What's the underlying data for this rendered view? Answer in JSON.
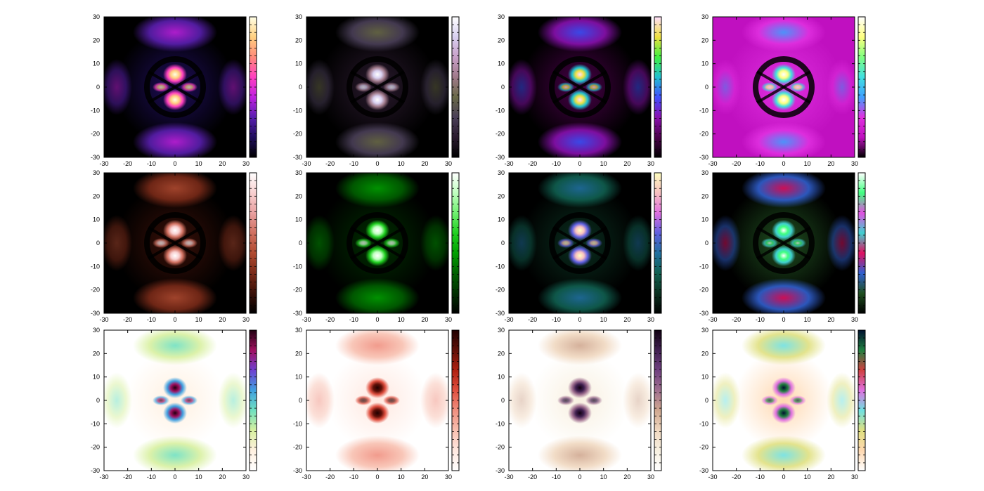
{
  "figure": {
    "rows": 3,
    "cols": 4
  },
  "chart_data": [
    {
      "type": "heatmap",
      "panel": "r1c1",
      "palette": [
        "#000000",
        "#1f0d5c",
        "#5a1fb0",
        "#c020e0",
        "#ff40c0",
        "#ff8a7a",
        "#ffd080",
        "#ffffe6"
      ],
      "xlim": [
        -30,
        30
      ],
      "ylim": [
        -30,
        30
      ],
      "xticks": [
        -30,
        -20,
        -10,
        0,
        10,
        20,
        30
      ],
      "yticks": [
        -30,
        -20,
        -10,
        0,
        10,
        20,
        30
      ],
      "colorbar_ticks": 9,
      "bg": "dark"
    },
    {
      "type": "heatmap",
      "panel": "r1c2",
      "palette": [
        "#000000",
        "#2a1a2e",
        "#4a3f58",
        "#6a6a48",
        "#a07a8a",
        "#c8a0c8",
        "#d8d0f0",
        "#ffffff"
      ],
      "xlim": [
        -30,
        30
      ],
      "ylim": [
        -30,
        30
      ],
      "xticks": [
        -30,
        -20,
        -10,
        0,
        10,
        20,
        30
      ],
      "yticks": [
        -30,
        -20,
        -10,
        0,
        10,
        20,
        30
      ],
      "colorbar_ticks": 9,
      "bg": "dark"
    },
    {
      "type": "heatmap",
      "panel": "r1c3",
      "palette": [
        "#000000",
        "#4a004a",
        "#8a10b0",
        "#4050ff",
        "#20c0d0",
        "#40f040",
        "#f0e040",
        "#ffe0ff"
      ],
      "xlim": [
        -30,
        30
      ],
      "ylim": [
        -30,
        30
      ],
      "xticks": [
        -30,
        -20,
        -10,
        0,
        10,
        20,
        30
      ],
      "yticks": [
        -30,
        -20,
        -10,
        0,
        10,
        20,
        30
      ],
      "colorbar_ticks": 9,
      "bg": "dark"
    },
    {
      "type": "heatmap",
      "panel": "r1c4",
      "palette": [
        "#000000",
        "#c010c0",
        "#e030e0",
        "#40a0ff",
        "#40e0e0",
        "#80ff80",
        "#ffff80",
        "#ffffff"
      ],
      "xlim": [
        -30,
        30
      ],
      "ylim": [
        -30,
        30
      ],
      "xticks": [
        -30,
        -20,
        -10,
        0,
        10,
        20,
        30
      ],
      "yticks": [
        -30,
        -20,
        -10,
        0,
        10,
        20,
        30
      ],
      "colorbar_ticks": 9,
      "bg": "magenta"
    },
    {
      "type": "heatmap",
      "panel": "r2c1",
      "palette": [
        "#000000",
        "#3a1008",
        "#7a2a18",
        "#b04a30",
        "#d07060",
        "#e8a0a0",
        "#f8d0d0",
        "#ffffff"
      ],
      "xlim": [
        -30,
        30
      ],
      "ylim": [
        -30,
        30
      ],
      "xticks": [
        -30,
        -20,
        -10,
        0,
        10,
        20,
        30
      ],
      "yticks": [
        -30,
        -20,
        -10,
        0,
        10,
        20,
        30
      ],
      "colorbar_ticks": 9,
      "bg": "dark"
    },
    {
      "type": "heatmap",
      "panel": "r2c2",
      "palette": [
        "#000000",
        "#003000",
        "#006000",
        "#00a000",
        "#20d020",
        "#70f070",
        "#c0ffc0",
        "#ffffff"
      ],
      "xlim": [
        -30,
        30
      ],
      "ylim": [
        -30,
        30
      ],
      "xticks": [
        -30,
        -20,
        -10,
        0,
        10,
        20,
        30
      ],
      "yticks": [
        -30,
        -20,
        -10,
        0,
        10,
        20,
        30
      ],
      "colorbar_ticks": 9,
      "bg": "dark"
    },
    {
      "type": "heatmap",
      "panel": "r2c3",
      "palette": [
        "#000000",
        "#0a3020",
        "#106050",
        "#2070a0",
        "#6060e0",
        "#e070e0",
        "#f8c0c0",
        "#ffffc0"
      ],
      "xlim": [
        -30,
        30
      ],
      "ylim": [
        -30,
        30
      ],
      "xticks": [
        -30,
        -20,
        -10,
        0,
        10,
        20,
        30
      ],
      "yticks": [
        -30,
        -20,
        -10,
        0,
        10,
        20,
        30
      ],
      "colorbar_ticks": 9,
      "bg": "dark"
    },
    {
      "type": "heatmap",
      "panel": "r2c4",
      "palette": [
        "#000000",
        "#205020",
        "#3060d0",
        "#e01060",
        "#40d0d0",
        "#e050e0",
        "#40ff80",
        "#ffffff"
      ],
      "xlim": [
        -30,
        30
      ],
      "ylim": [
        -30,
        30
      ],
      "xticks": [
        -30,
        -20,
        -10,
        0,
        10,
        20,
        30
      ],
      "yticks": [
        -30,
        -20,
        -10,
        0,
        10,
        20,
        30
      ],
      "colorbar_ticks": 9,
      "bg": "dark"
    },
    {
      "type": "heatmap",
      "panel": "r3c1",
      "palette": [
        "#ffffff",
        "#fff0e0",
        "#d8f0a0",
        "#70e0c0",
        "#40a0e0",
        "#7040d0",
        "#a01060",
        "#200010"
      ],
      "xlim": [
        -30,
        30
      ],
      "ylim": [
        -30,
        30
      ],
      "xticks": [
        -30,
        -20,
        -10,
        0,
        10,
        20,
        30
      ],
      "yticks": [
        -30,
        -20,
        -10,
        0,
        10,
        20,
        30
      ],
      "colorbar_ticks": 9,
      "bg": "light"
    },
    {
      "type": "heatmap",
      "panel": "r3c2",
      "palette": [
        "#ffffff",
        "#ffe8e0",
        "#f8c0b0",
        "#f09080",
        "#e05040",
        "#b02010",
        "#601008",
        "#200000"
      ],
      "xlim": [
        -30,
        30
      ],
      "ylim": [
        -30,
        30
      ],
      "xticks": [
        -30,
        -20,
        -10,
        0,
        10,
        20,
        30
      ],
      "yticks": [
        -30,
        -20,
        -10,
        0,
        10,
        20,
        30
      ],
      "colorbar_ticks": 9,
      "bg": "light"
    },
    {
      "type": "heatmap",
      "panel": "r3c3",
      "palette": [
        "#ffffff",
        "#f8f0e0",
        "#f0d8c0",
        "#d0a890",
        "#a07090",
        "#704080",
        "#402050",
        "#100010"
      ],
      "xlim": [
        -30,
        30
      ],
      "ylim": [
        -30,
        30
      ],
      "xticks": [
        -30,
        -20,
        -10,
        0,
        10,
        20,
        30
      ],
      "yticks": [
        -30,
        -20,
        -10,
        0,
        10,
        20,
        30
      ],
      "colorbar_ticks": 9,
      "bg": "light"
    },
    {
      "type": "heatmap",
      "panel": "r3c4",
      "palette": [
        "#ffffff",
        "#ffd8b0",
        "#e0e080",
        "#70e0e0",
        "#e070e0",
        "#d04040",
        "#208040",
        "#001030"
      ],
      "xlim": [
        -30,
        30
      ],
      "ylim": [
        -30,
        30
      ],
      "xticks": [
        -30,
        -20,
        -10,
        0,
        10,
        20,
        30
      ],
      "yticks": [
        -30,
        -20,
        -10,
        0,
        10,
        20,
        30
      ],
      "colorbar_ticks": 9,
      "bg": "light"
    }
  ]
}
